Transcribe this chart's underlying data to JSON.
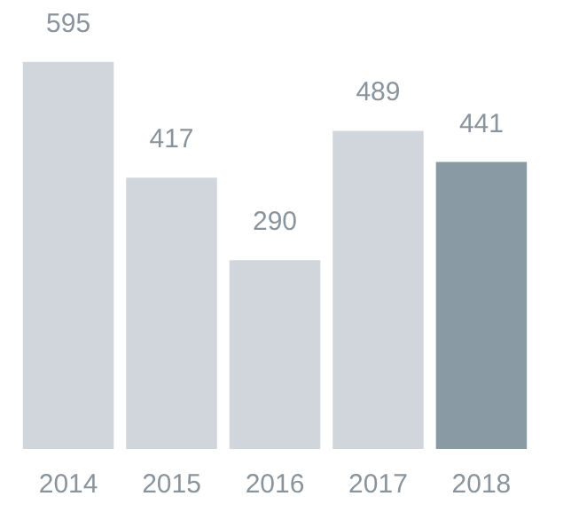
{
  "chart_data": {
    "type": "bar",
    "categories": [
      "2014",
      "2015",
      "2016",
      "2017",
      "2018"
    ],
    "values": [
      595,
      417,
      290,
      489,
      441
    ],
    "colors": [
      "#d1d6dd",
      "#d1d6dd",
      "#d1d6dd",
      "#d1d6dd",
      "#8a9aa5"
    ],
    "data_labels": true
  }
}
